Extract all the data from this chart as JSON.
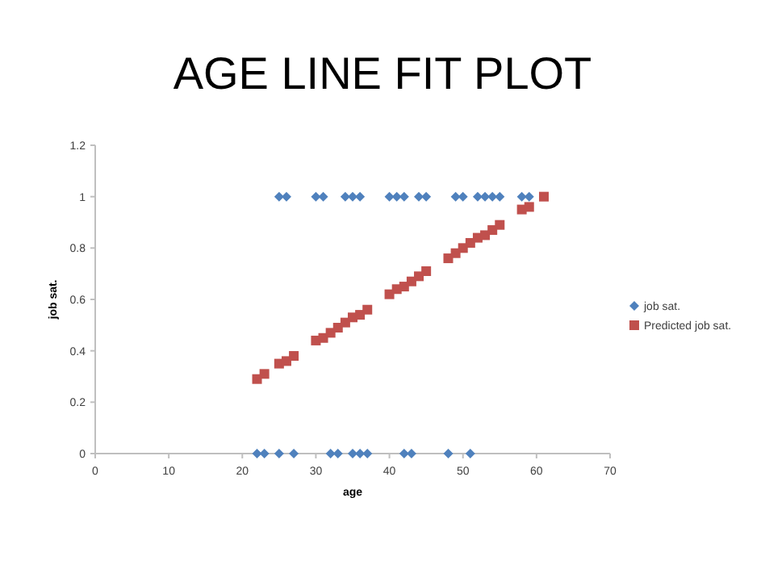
{
  "chart_data": {
    "type": "scatter",
    "title": "AGE LINE FIT PLOT",
    "xlabel": "age",
    "ylabel": "job sat.",
    "xlim": [
      0,
      70
    ],
    "xticks": [
      0,
      10,
      20,
      30,
      40,
      50,
      60,
      70
    ],
    "ylim": [
      0,
      1.2
    ],
    "yticks": [
      0,
      0.2,
      0.4,
      0.6,
      0.8,
      1,
      1.2
    ],
    "grid": false,
    "legend": "right",
    "series": [
      {
        "name": "job sat.",
        "color": "#4f81bd",
        "marker": "diamond",
        "x": [
          22,
          23,
          25,
          27,
          32,
          33,
          35,
          36,
          37,
          42,
          43,
          48,
          51,
          25,
          26,
          30,
          31,
          34,
          35,
          36,
          40,
          41,
          42,
          44,
          45,
          49,
          50,
          52,
          53,
          54,
          55,
          58,
          59
        ],
        "values": [
          0,
          0,
          0,
          0,
          0,
          0,
          0,
          0,
          0,
          0,
          0,
          0,
          0,
          1,
          1,
          1,
          1,
          1,
          1,
          1,
          1,
          1,
          1,
          1,
          1,
          1,
          1,
          1,
          1,
          1,
          1,
          1,
          1
        ]
      },
      {
        "name": "Predicted job sat.",
        "color": "#c0504d",
        "marker": "square",
        "x": [
          22,
          23,
          25,
          26,
          27,
          30,
          31,
          32,
          33,
          34,
          35,
          36,
          37,
          40,
          41,
          42,
          43,
          44,
          45,
          48,
          49,
          50,
          51,
          52,
          53,
          54,
          55,
          58,
          59,
          61
        ],
        "values": [
          0.29,
          0.31,
          0.35,
          0.36,
          0.38,
          0.44,
          0.45,
          0.47,
          0.49,
          0.51,
          0.53,
          0.54,
          0.56,
          0.62,
          0.64,
          0.65,
          0.67,
          0.69,
          0.71,
          0.76,
          0.78,
          0.8,
          0.82,
          0.84,
          0.85,
          0.87,
          0.89,
          0.95,
          0.96,
          1.0
        ]
      }
    ]
  }
}
